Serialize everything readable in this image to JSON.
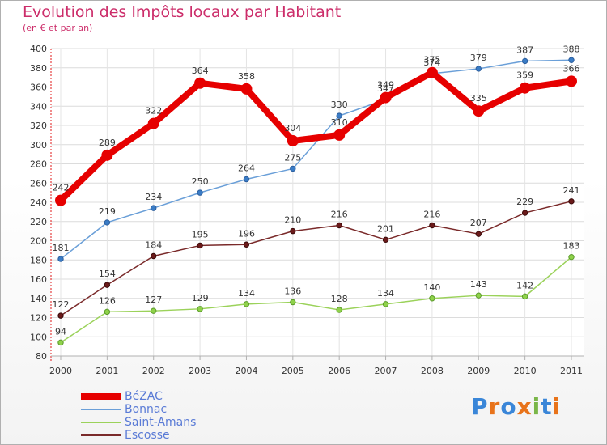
{
  "header": {
    "title": "Evolution des Impôts locaux par Habitant",
    "subtitle": "(en € et par an)"
  },
  "chart_data": {
    "type": "line",
    "title": "Evolution des Impôts locaux par Habitant",
    "subtitle": "(en € et par an)",
    "xlabel": "",
    "ylabel": "",
    "categories": [
      "2000",
      "2001",
      "2002",
      "2003",
      "2004",
      "2005",
      "2006",
      "2007",
      "2008",
      "2009",
      "2010",
      "2011"
    ],
    "ylim": [
      80,
      400
    ],
    "yticks": [
      80,
      100,
      120,
      140,
      160,
      180,
      200,
      220,
      240,
      260,
      280,
      300,
      320,
      340,
      360,
      380,
      400
    ],
    "grid": true,
    "legend_position": "bottom-left",
    "series": [
      {
        "name": "BéZAC",
        "color": "#e60000",
        "values": [
          242,
          289,
          322,
          364,
          358,
          304,
          310,
          349,
          375,
          335,
          359,
          366
        ]
      },
      {
        "name": "Bonnac",
        "color": "#6a9fd8",
        "values": [
          181,
          219,
          234,
          250,
          264,
          275,
          330,
          347,
          374,
          379,
          387,
          388
        ]
      },
      {
        "name": "Saint-Amans",
        "color": "#9bd25a",
        "values": [
          94,
          126,
          127,
          129,
          134,
          136,
          128,
          134,
          140,
          143,
          142,
          183
        ]
      },
      {
        "name": "Escosse",
        "color": "#7a2a2a",
        "values": [
          122,
          154,
          184,
          195,
          196,
          210,
          216,
          201,
          216,
          207,
          229,
          241
        ]
      }
    ]
  },
  "logo": {
    "letters": [
      "P",
      "r",
      "o",
      "x",
      "i",
      "t",
      "i"
    ],
    "colors": [
      "#3a86d8",
      "#e8731a",
      "#3a86d8",
      "#e8731a",
      "#7ab648",
      "#3a86d8",
      "#e8731a"
    ]
  }
}
